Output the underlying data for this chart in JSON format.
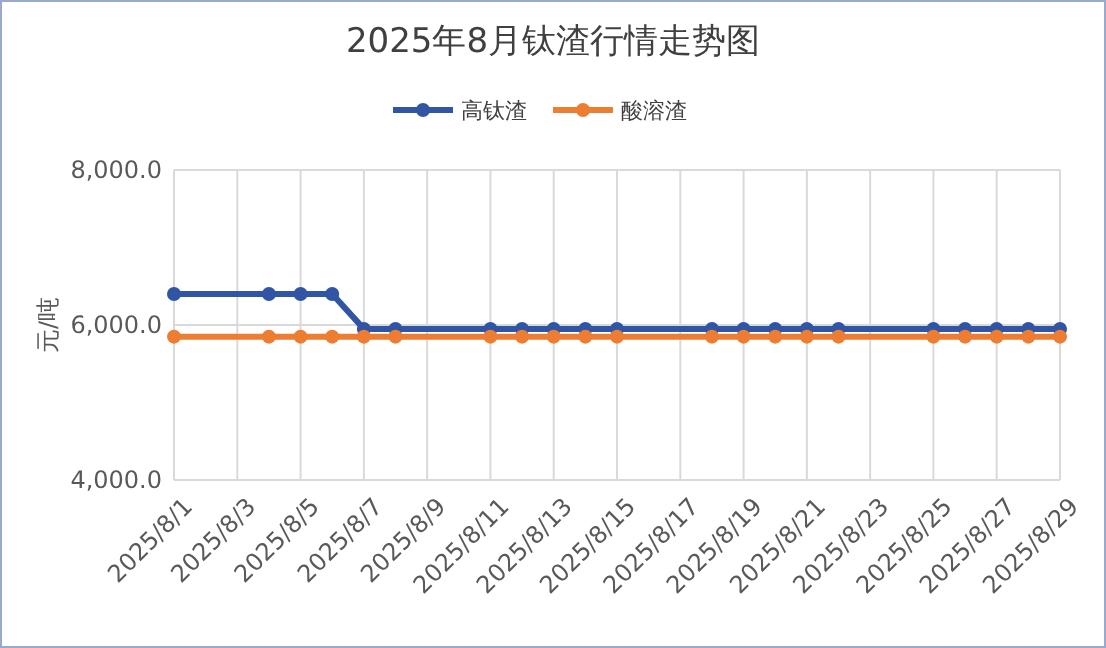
{
  "chart_data": {
    "type": "line",
    "title": "2025年8月钛渣行情走势图",
    "ylabel": "元/吨",
    "x": [
      "2025-08-01",
      "2025-08-04",
      "2025-08-05",
      "2025-08-06",
      "2025-08-07",
      "2025-08-08",
      "2025-08-11",
      "2025-08-12",
      "2025-08-13",
      "2025-08-14",
      "2025-08-15",
      "2025-08-18",
      "2025-08-19",
      "2025-08-20",
      "2025-08-21",
      "2025-08-22",
      "2025-08-25",
      "2025-08-26",
      "2025-08-27",
      "2025-08-28",
      "2025-08-29"
    ],
    "series": [
      {
        "name": "高钛渣",
        "color": "#2f55a4",
        "values": [
          6400,
          6400,
          6400,
          6400,
          5950,
          5950,
          5950,
          5950,
          5950,
          5950,
          5950,
          5950,
          5950,
          5950,
          5950,
          5950,
          5950,
          5950,
          5950,
          5950,
          5950
        ]
      },
      {
        "name": "酸溶渣",
        "color": "#ed7d31",
        "values": [
          5850,
          5850,
          5850,
          5850,
          5850,
          5850,
          5850,
          5850,
          5850,
          5850,
          5850,
          5850,
          5850,
          5850,
          5850,
          5850,
          5850,
          5850,
          5850,
          5850,
          5850
        ]
      }
    ],
    "xlim": [
      "2025-08-01",
      "2025-08-29"
    ],
    "xticks": [
      {
        "value": "2025-08-01",
        "label": "2025/8/1"
      },
      {
        "value": "2025-08-03",
        "label": "2025/8/3"
      },
      {
        "value": "2025-08-05",
        "label": "2025/8/5"
      },
      {
        "value": "2025-08-07",
        "label": "2025/8/7"
      },
      {
        "value": "2025-08-09",
        "label": "2025/8/9"
      },
      {
        "value": "2025-08-11",
        "label": "2025/8/11"
      },
      {
        "value": "2025-08-13",
        "label": "2025/8/13"
      },
      {
        "value": "2025-08-15",
        "label": "2025/8/15"
      },
      {
        "value": "2025-08-17",
        "label": "2025/8/17"
      },
      {
        "value": "2025-08-19",
        "label": "2025/8/19"
      },
      {
        "value": "2025-08-21",
        "label": "2025/8/21"
      },
      {
        "value": "2025-08-23",
        "label": "2025/8/23"
      },
      {
        "value": "2025-08-25",
        "label": "2025/8/25"
      },
      {
        "value": "2025-08-27",
        "label": "2025/8/27"
      },
      {
        "value": "2025-08-29",
        "label": "2025/8/29"
      }
    ],
    "ylim": [
      4000,
      8000
    ],
    "yticks": [
      {
        "value": 4000,
        "label": "4,000.0"
      },
      {
        "value": 6000,
        "label": "6,000.0"
      },
      {
        "value": 8000,
        "label": "8,000.0"
      }
    ],
    "grid": true,
    "legend": "top",
    "marker": "circle",
    "line_style": "solid"
  }
}
